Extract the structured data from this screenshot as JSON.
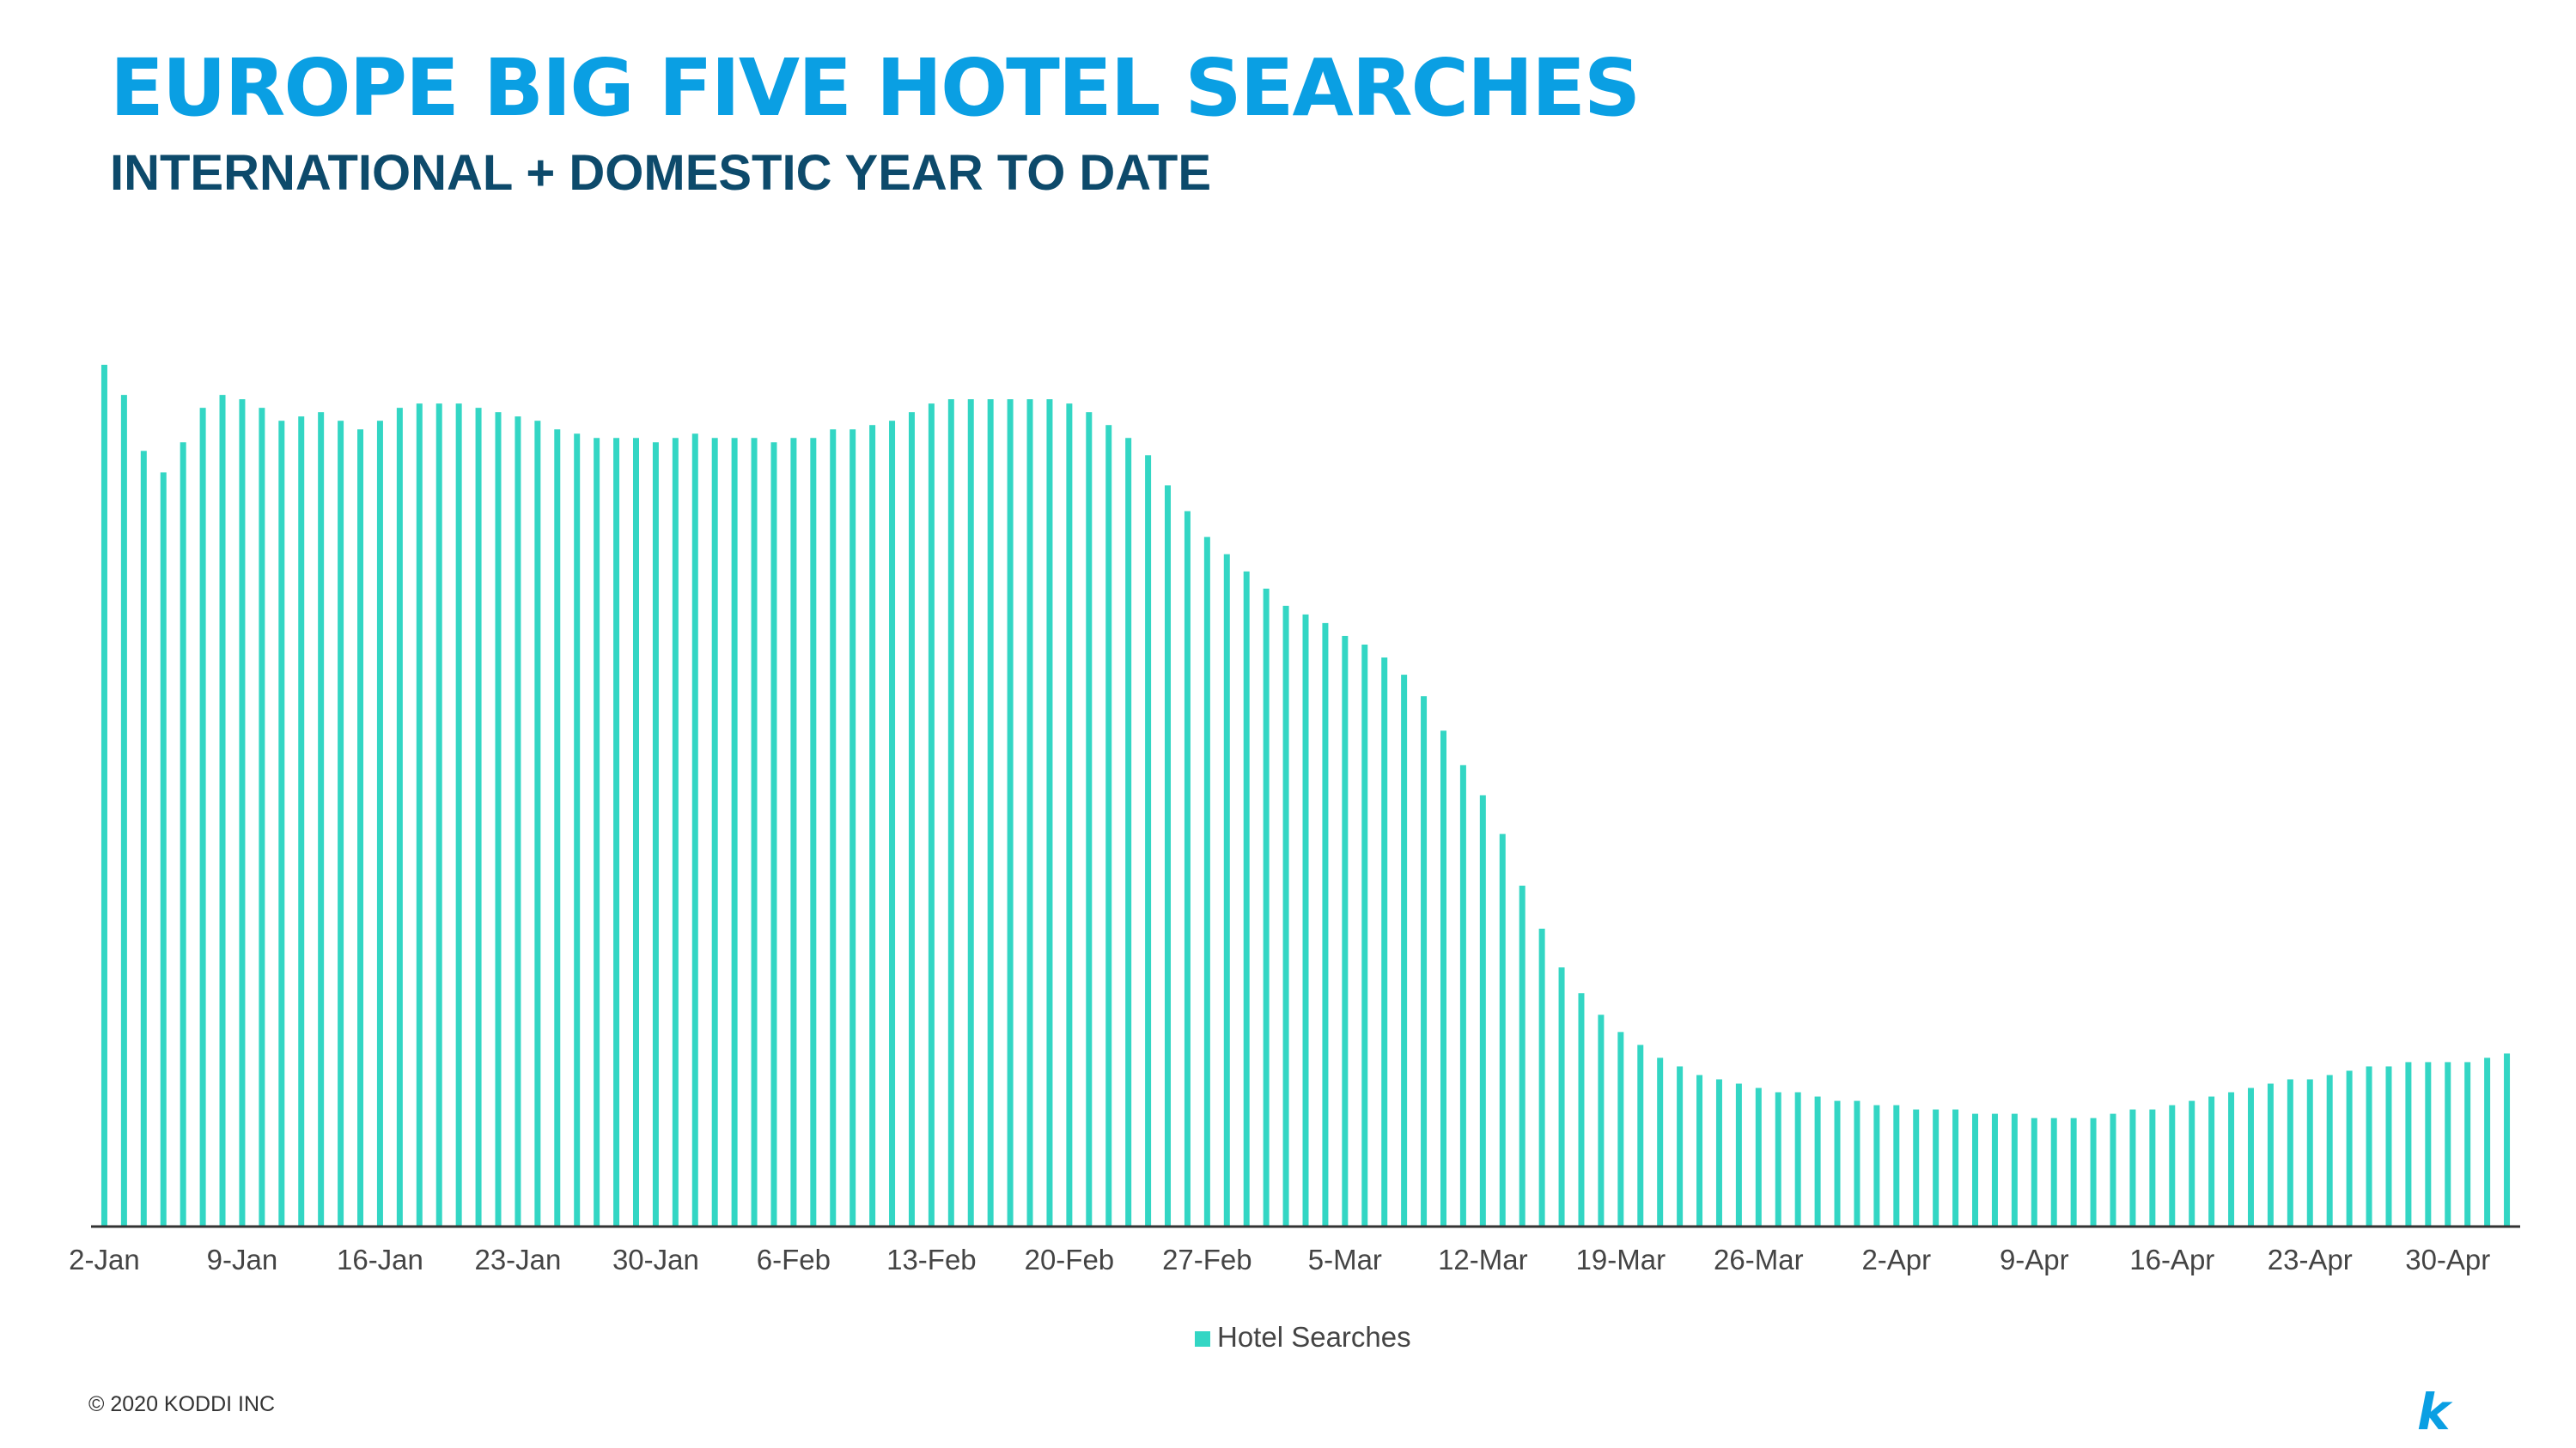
{
  "header": {
    "title": "EUROPE BIG FIVE HOTEL SEARCHES",
    "subtitle": "INTERNATIONAL + DOMESTIC YEAR TO DATE"
  },
  "footer": {
    "copyright": "© 2020 KODDI INC",
    "logo_letter": "k",
    "logo_icon": "koddi-k-logo-icon"
  },
  "colors": {
    "title": "#0a9fe3",
    "subtitle": "#0d4a6b",
    "bar": "#33d6c4",
    "axis": "#333333",
    "logo": "#0a9fe3"
  },
  "chart_data": {
    "type": "bar",
    "grid": false,
    "legend_position": "bottom-center",
    "ylim": [
      0,
      100
    ],
    "xtick_labels": [
      "2-Jan",
      "9-Jan",
      "16-Jan",
      "23-Jan",
      "30-Jan",
      "6-Feb",
      "13-Feb",
      "20-Feb",
      "27-Feb",
      "5-Mar",
      "12-Mar",
      "19-Mar",
      "26-Mar",
      "2-Apr",
      "9-Apr",
      "16-Apr",
      "23-Apr",
      "30-Apr"
    ],
    "series": [
      {
        "name": "Hotel Searches",
        "color": "#33d6c4",
        "values": [
          100,
          96.5,
          90,
          87.5,
          91,
          95,
          96.5,
          96,
          95,
          93.5,
          94,
          94.5,
          93.5,
          92.5,
          93.5,
          95,
          95.5,
          95.5,
          95.5,
          95,
          94.5,
          94,
          93.5,
          92.5,
          92,
          91.5,
          91.5,
          91.5,
          91,
          91.5,
          92,
          91.5,
          91.5,
          91.5,
          91,
          91.5,
          91.5,
          92.5,
          92.5,
          93,
          93.5,
          94.5,
          95.5,
          96,
          96,
          96,
          96,
          96,
          96,
          95.5,
          94.5,
          93,
          91.5,
          89.5,
          86,
          83,
          80,
          78,
          76,
          74,
          72,
          71,
          70,
          68.5,
          67.5,
          66,
          64,
          61.5,
          57.5,
          53.5,
          50,
          45.5,
          39.5,
          34.5,
          30,
          27,
          24.5,
          22.5,
          21,
          19.5,
          18.5,
          17.5,
          17,
          16.5,
          16,
          15.5,
          15.5,
          15,
          14.5,
          14.5,
          14,
          14,
          13.5,
          13.5,
          13.5,
          13,
          13,
          13,
          12.5,
          12.5,
          12.5,
          12.5,
          13,
          13.5,
          13.5,
          14,
          14.5,
          15,
          15.5,
          16,
          16.5,
          17,
          17,
          17.5,
          18,
          18.5,
          18.5,
          19,
          19,
          19,
          19,
          19.5,
          20
        ]
      }
    ]
  }
}
